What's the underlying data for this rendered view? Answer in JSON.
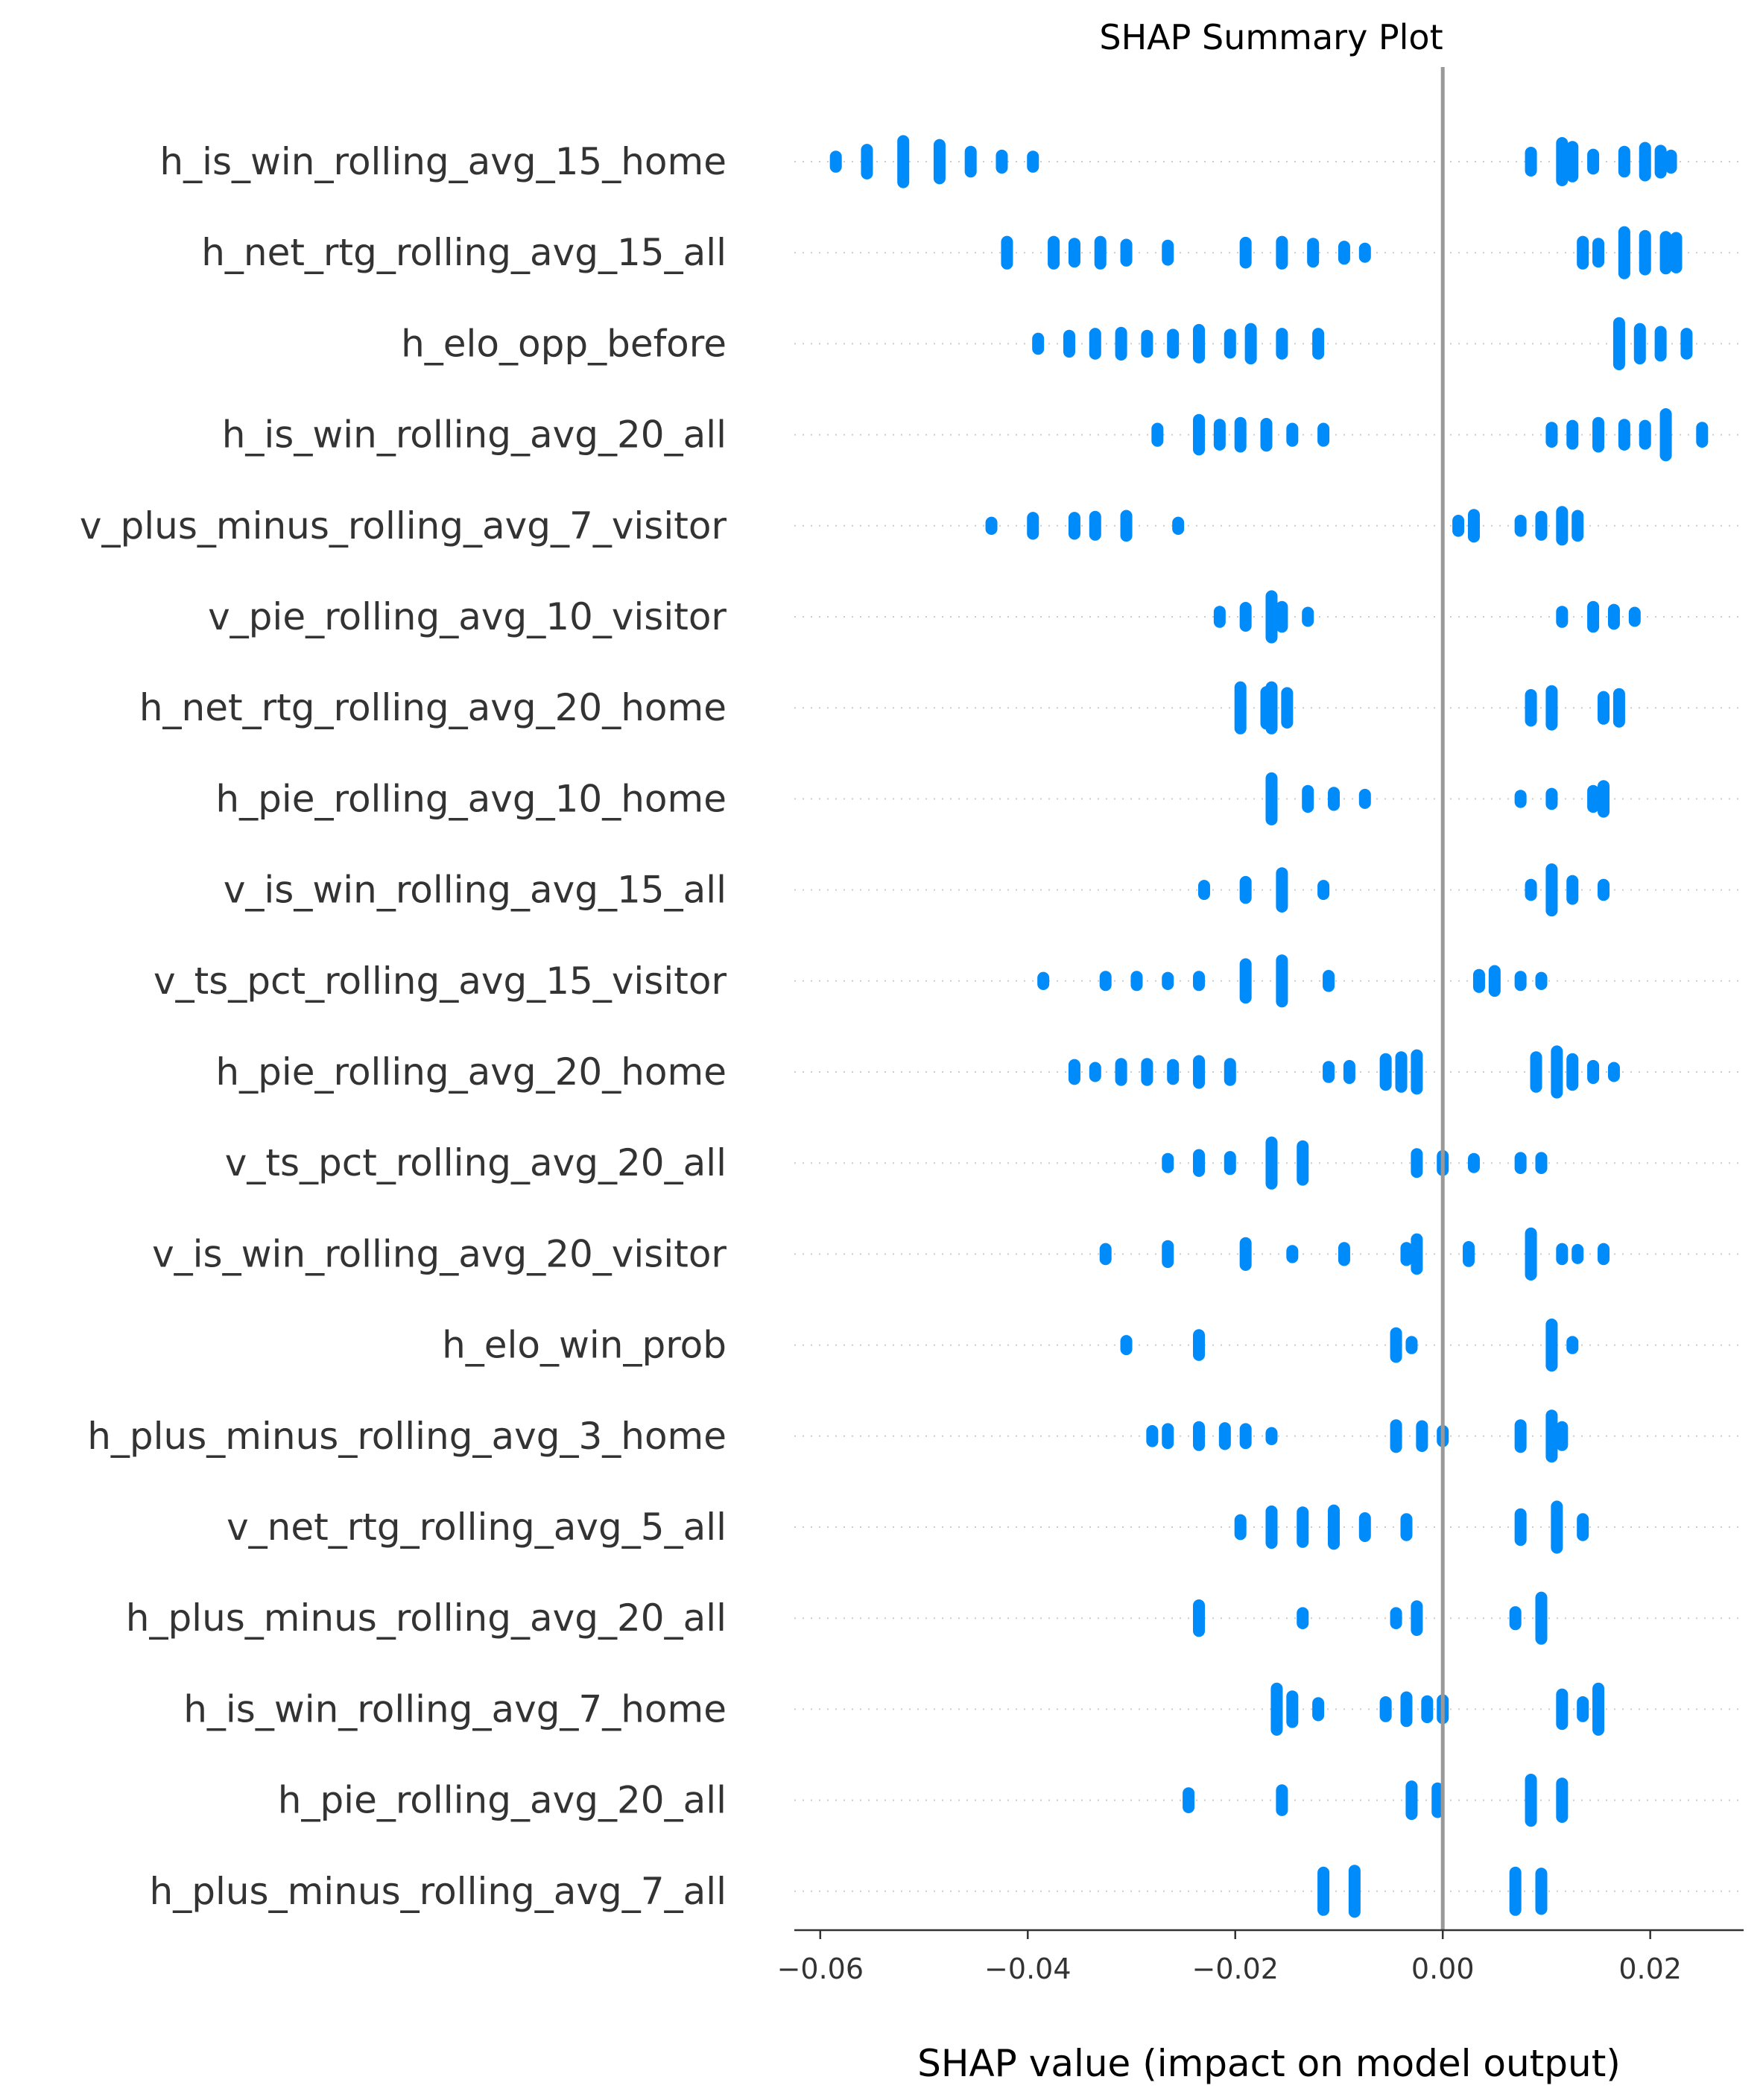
{
  "chart_data": {
    "type": "scatter",
    "title": "SHAP Summary Plot",
    "xlabel": "SHAP value (impact on model output)",
    "ylabel": "",
    "xlim": [
      -0.0625,
      0.029
    ],
    "xticks": [
      -0.06,
      -0.04,
      -0.02,
      0.0,
      0.02
    ],
    "xtick_labels": [
      "−0.06",
      "−0.04",
      "−0.02",
      "0.00",
      "0.02"
    ],
    "grid": "dotted horizontal rows",
    "legend": "none",
    "colors": {
      "points": "#008bfb",
      "zero_line": "#999999",
      "axis": "#333333",
      "row_grid": "#cccccc"
    },
    "series": [
      {
        "feature": "h_is_win_rolling_avg_15_home",
        "clusters": [
          [
            -0.0585,
            0.6
          ],
          [
            -0.0555,
            1.3
          ],
          [
            -0.052,
            2.2
          ],
          [
            -0.0485,
            1.8
          ],
          [
            -0.0455,
            1.1
          ],
          [
            -0.0425,
            0.7
          ],
          [
            -0.0395,
            0.6
          ],
          [
            0.0085,
            1.0
          ],
          [
            0.0115,
            2.0
          ],
          [
            0.0125,
            1.6
          ],
          [
            0.0145,
            0.8
          ],
          [
            0.0175,
            1.1
          ],
          [
            0.0195,
            1.5
          ],
          [
            0.021,
            1.2
          ],
          [
            0.022,
            0.7
          ]
        ]
      },
      {
        "feature": "h_net_rtg_rolling_avg_15_all",
        "clusters": [
          [
            -0.042,
            1.2
          ],
          [
            -0.0375,
            1.2
          ],
          [
            -0.0355,
            1.0
          ],
          [
            -0.033,
            1.2
          ],
          [
            -0.0305,
            0.9
          ],
          [
            -0.0265,
            0.8
          ],
          [
            -0.019,
            1.1
          ],
          [
            -0.0155,
            1.2
          ],
          [
            -0.0125,
            1.0
          ],
          [
            -0.0095,
            0.7
          ],
          [
            -0.0075,
            0.5
          ],
          [
            0.0135,
            1.2
          ],
          [
            0.015,
            1.0
          ],
          [
            0.0175,
            2.2
          ],
          [
            0.0195,
            1.8
          ],
          [
            0.0215,
            1.7
          ],
          [
            0.0225,
            1.6
          ]
        ]
      },
      {
        "feature": "h_elo_opp_before",
        "clusters": [
          [
            -0.039,
            0.6
          ],
          [
            -0.036,
            0.9
          ],
          [
            -0.0335,
            1.1
          ],
          [
            -0.031,
            1.2
          ],
          [
            -0.0285,
            0.9
          ],
          [
            -0.026,
            1.0
          ],
          [
            -0.0235,
            1.5
          ],
          [
            -0.0205,
            1.0
          ],
          [
            -0.0185,
            1.6
          ],
          [
            -0.0155,
            1.1
          ],
          [
            -0.012,
            1.1
          ],
          [
            0.017,
            2.2
          ],
          [
            0.019,
            1.6
          ],
          [
            0.021,
            1.3
          ],
          [
            0.0235,
            1.1
          ]
        ]
      },
      {
        "feature": "h_is_win_rolling_avg_20_all",
        "clusters": [
          [
            -0.0275,
            0.7
          ],
          [
            -0.0235,
            1.6
          ],
          [
            -0.0215,
            1.1
          ],
          [
            -0.0195,
            1.3
          ],
          [
            -0.017,
            1.2
          ],
          [
            -0.0145,
            0.7
          ],
          [
            -0.0115,
            0.7
          ],
          [
            0.0105,
            0.8
          ],
          [
            0.0125,
            1.0
          ],
          [
            0.015,
            1.3
          ],
          [
            0.0175,
            1.1
          ],
          [
            0.0195,
            1.0
          ],
          [
            0.0215,
            2.2
          ],
          [
            0.025,
            0.8
          ]
        ]
      },
      {
        "feature": "v_plus_minus_rolling_avg_7_visitor",
        "clusters": [
          [
            -0.0435,
            0.4
          ],
          [
            -0.0395,
            0.9
          ],
          [
            -0.0355,
            0.9
          ],
          [
            -0.0335,
            1.0
          ],
          [
            -0.0305,
            1.1
          ],
          [
            -0.0255,
            0.4
          ],
          [
            0.0015,
            0.6
          ],
          [
            0.003,
            1.2
          ],
          [
            0.0075,
            0.6
          ],
          [
            0.0095,
            1.0
          ],
          [
            0.0115,
            1.5
          ],
          [
            0.013,
            1.1
          ]
        ]
      },
      {
        "feature": "v_pie_rolling_avg_10_visitor",
        "clusters": [
          [
            -0.0215,
            0.6
          ],
          [
            -0.019,
            1.0
          ],
          [
            -0.0165,
            2.2
          ],
          [
            -0.0155,
            1.1
          ],
          [
            -0.013,
            0.5
          ],
          [
            0.0115,
            0.6
          ],
          [
            0.0145,
            1.1
          ],
          [
            0.0165,
            0.8
          ],
          [
            0.0185,
            0.5
          ]
        ]
      },
      {
        "feature": "h_net_rtg_rolling_avg_20_home",
        "clusters": [
          [
            -0.0195,
            2.2
          ],
          [
            -0.017,
            1.7
          ],
          [
            -0.0165,
            2.2
          ],
          [
            -0.015,
            1.6
          ],
          [
            0.0085,
            1.4
          ],
          [
            0.0105,
            1.8
          ],
          [
            0.0155,
            1.2
          ],
          [
            0.017,
            1.5
          ]
        ]
      },
      {
        "feature": "h_pie_rolling_avg_10_home",
        "clusters": [
          [
            -0.0165,
            2.2
          ],
          [
            -0.013,
            0.9
          ],
          [
            -0.0105,
            0.7
          ],
          [
            -0.0075,
            0.5
          ],
          [
            0.0075,
            0.4
          ],
          [
            0.0105,
            0.6
          ],
          [
            0.0145,
            0.9
          ],
          [
            0.0155,
            1.4
          ]
        ]
      },
      {
        "feature": "v_is_win_rolling_avg_15_all",
        "clusters": [
          [
            -0.023,
            0.5
          ],
          [
            -0.019,
            0.9
          ],
          [
            -0.0155,
            1.8
          ],
          [
            -0.0115,
            0.5
          ],
          [
            0.0085,
            0.6
          ],
          [
            0.0105,
            2.2
          ],
          [
            0.0125,
            1.0
          ],
          [
            0.0155,
            0.6
          ]
        ]
      },
      {
        "feature": "v_ts_pct_rolling_avg_15_visitor",
        "clusters": [
          [
            -0.0385,
            0.4
          ],
          [
            -0.0325,
            0.5
          ],
          [
            -0.0295,
            0.5
          ],
          [
            -0.0265,
            0.4
          ],
          [
            -0.0235,
            0.5
          ],
          [
            -0.019,
            1.8
          ],
          [
            -0.0155,
            2.2
          ],
          [
            -0.011,
            0.6
          ],
          [
            0.0035,
            0.7
          ],
          [
            0.005,
            1.1
          ],
          [
            0.0075,
            0.5
          ],
          [
            0.0095,
            0.4
          ]
        ]
      },
      {
        "feature": "h_pie_rolling_avg_20_home",
        "clusters": [
          [
            -0.0355,
            0.8
          ],
          [
            -0.0335,
            0.5
          ],
          [
            -0.031,
            0.9
          ],
          [
            -0.0285,
            0.9
          ],
          [
            -0.026,
            0.8
          ],
          [
            -0.0235,
            1.2
          ],
          [
            -0.0205,
            0.9
          ],
          [
            -0.011,
            0.6
          ],
          [
            -0.009,
            0.7
          ],
          [
            -0.0055,
            1.4
          ],
          [
            -0.004,
            1.6
          ],
          [
            -0.0025,
            1.8
          ],
          [
            0.009,
            1.6
          ],
          [
            0.011,
            2.2
          ],
          [
            0.0125,
            1.4
          ],
          [
            0.0145,
            0.7
          ],
          [
            0.0165,
            0.5
          ]
        ]
      },
      {
        "feature": "v_ts_pct_rolling_avg_20_all",
        "clusters": [
          [
            -0.0265,
            0.5
          ],
          [
            -0.0235,
            0.9
          ],
          [
            -0.0205,
            0.7
          ],
          [
            -0.0165,
            2.2
          ],
          [
            -0.0135,
            1.8
          ],
          [
            -0.0025,
            1.0
          ],
          [
            0.0,
            0.8
          ],
          [
            0.003,
            0.5
          ],
          [
            0.0075,
            0.6
          ],
          [
            0.0095,
            0.6
          ]
        ]
      },
      {
        "feature": "v_is_win_rolling_avg_20_visitor",
        "clusters": [
          [
            -0.0325,
            0.6
          ],
          [
            -0.0265,
            0.9
          ],
          [
            -0.019,
            1.2
          ],
          [
            -0.0145,
            0.4
          ],
          [
            -0.0095,
            0.7
          ],
          [
            -0.0035,
            0.7
          ],
          [
            -0.0025,
            1.6
          ],
          [
            0.0025,
            0.8
          ],
          [
            0.0085,
            2.2
          ],
          [
            0.0115,
            0.6
          ],
          [
            0.013,
            0.5
          ],
          [
            0.0155,
            0.6
          ]
        ]
      },
      {
        "feature": "h_elo_win_prob",
        "clusters": [
          [
            -0.0305,
            0.5
          ],
          [
            -0.0235,
            1.1
          ],
          [
            -0.0045,
            1.3
          ],
          [
            -0.003,
            0.4
          ],
          [
            0.0105,
            2.2
          ],
          [
            0.0125,
            0.4
          ]
        ]
      },
      {
        "feature": "h_plus_minus_rolling_avg_3_home",
        "clusters": [
          [
            -0.028,
            0.6
          ],
          [
            -0.0265,
            0.8
          ],
          [
            -0.0235,
            1.0
          ],
          [
            -0.021,
            0.9
          ],
          [
            -0.019,
            0.8
          ],
          [
            -0.0165,
            0.4
          ],
          [
            -0.0045,
            1.2
          ],
          [
            -0.002,
            1.1
          ],
          [
            0.0,
            0.6
          ],
          [
            0.0075,
            1.2
          ],
          [
            0.0105,
            2.2
          ],
          [
            0.0115,
            1.0
          ]
        ]
      },
      {
        "feature": "v_net_rtg_rolling_avg_5_all",
        "clusters": [
          [
            -0.0195,
            0.8
          ],
          [
            -0.0165,
            1.7
          ],
          [
            -0.0135,
            1.6
          ],
          [
            -0.0105,
            1.8
          ],
          [
            -0.0075,
            1.0
          ],
          [
            -0.0035,
            0.9
          ],
          [
            0.0075,
            1.4
          ],
          [
            0.011,
            2.2
          ],
          [
            0.0135,
            0.9
          ]
        ]
      },
      {
        "feature": "h_plus_minus_rolling_avg_20_all",
        "clusters": [
          [
            -0.0235,
            1.4
          ],
          [
            -0.0135,
            0.6
          ],
          [
            -0.0045,
            0.6
          ],
          [
            -0.0025,
            1.3
          ],
          [
            0.007,
            0.7
          ],
          [
            0.0095,
            2.2
          ]
        ]
      },
      {
        "feature": "h_is_win_rolling_avg_7_home",
        "clusters": [
          [
            -0.016,
            2.2
          ],
          [
            -0.0145,
            1.4
          ],
          [
            -0.012,
            0.7
          ],
          [
            -0.0055,
            0.8
          ],
          [
            -0.0035,
            1.3
          ],
          [
            -0.0015,
            0.9
          ],
          [
            0.0,
            1.0
          ],
          [
            0.0115,
            1.6
          ],
          [
            0.0135,
            0.8
          ],
          [
            0.015,
            2.2
          ]
        ]
      },
      {
        "feature": "h_pie_rolling_avg_20_all",
        "clusters": [
          [
            -0.0245,
            0.8
          ],
          [
            -0.0155,
            1.1
          ],
          [
            -0.003,
            1.5
          ],
          [
            -0.0005,
            1.3
          ],
          [
            0.0085,
            2.2
          ],
          [
            0.0115,
            1.8
          ]
        ]
      },
      {
        "feature": "h_plus_minus_rolling_avg_7_all",
        "clusters": [
          [
            -0.0115,
            2.0
          ],
          [
            -0.0085,
            2.2
          ],
          [
            0.007,
            2.0
          ],
          [
            0.0095,
            1.9
          ]
        ]
      }
    ]
  }
}
